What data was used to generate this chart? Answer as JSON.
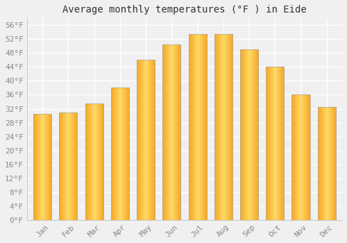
{
  "title": "Average monthly temperatures (°F ) in Eide",
  "months": [
    "Jan",
    "Feb",
    "Mar",
    "Apr",
    "May",
    "Jun",
    "Jul",
    "Aug",
    "Sep",
    "Oct",
    "Nov",
    "Dec"
  ],
  "values": [
    30.5,
    31.0,
    33.5,
    38.0,
    46.0,
    50.5,
    53.5,
    53.5,
    49.0,
    44.0,
    36.0,
    32.5
  ],
  "bar_color_dark": "#F5A623",
  "bar_color_light": "#FFD966",
  "bar_edge_color": "#aaaaaa",
  "ylim": [
    0,
    58
  ],
  "yticks": [
    0,
    4,
    8,
    12,
    16,
    20,
    24,
    28,
    32,
    36,
    40,
    44,
    48,
    52,
    56
  ],
  "ytick_labels": [
    "0°F",
    "4°F",
    "8°F",
    "12°F",
    "16°F",
    "20°F",
    "24°F",
    "28°F",
    "32°F",
    "36°F",
    "40°F",
    "44°F",
    "48°F",
    "52°F",
    "56°F"
  ],
  "background_color": "#f0f0f0",
  "grid_color": "#ffffff",
  "title_fontsize": 10,
  "tick_fontsize": 8,
  "bar_width": 0.7
}
